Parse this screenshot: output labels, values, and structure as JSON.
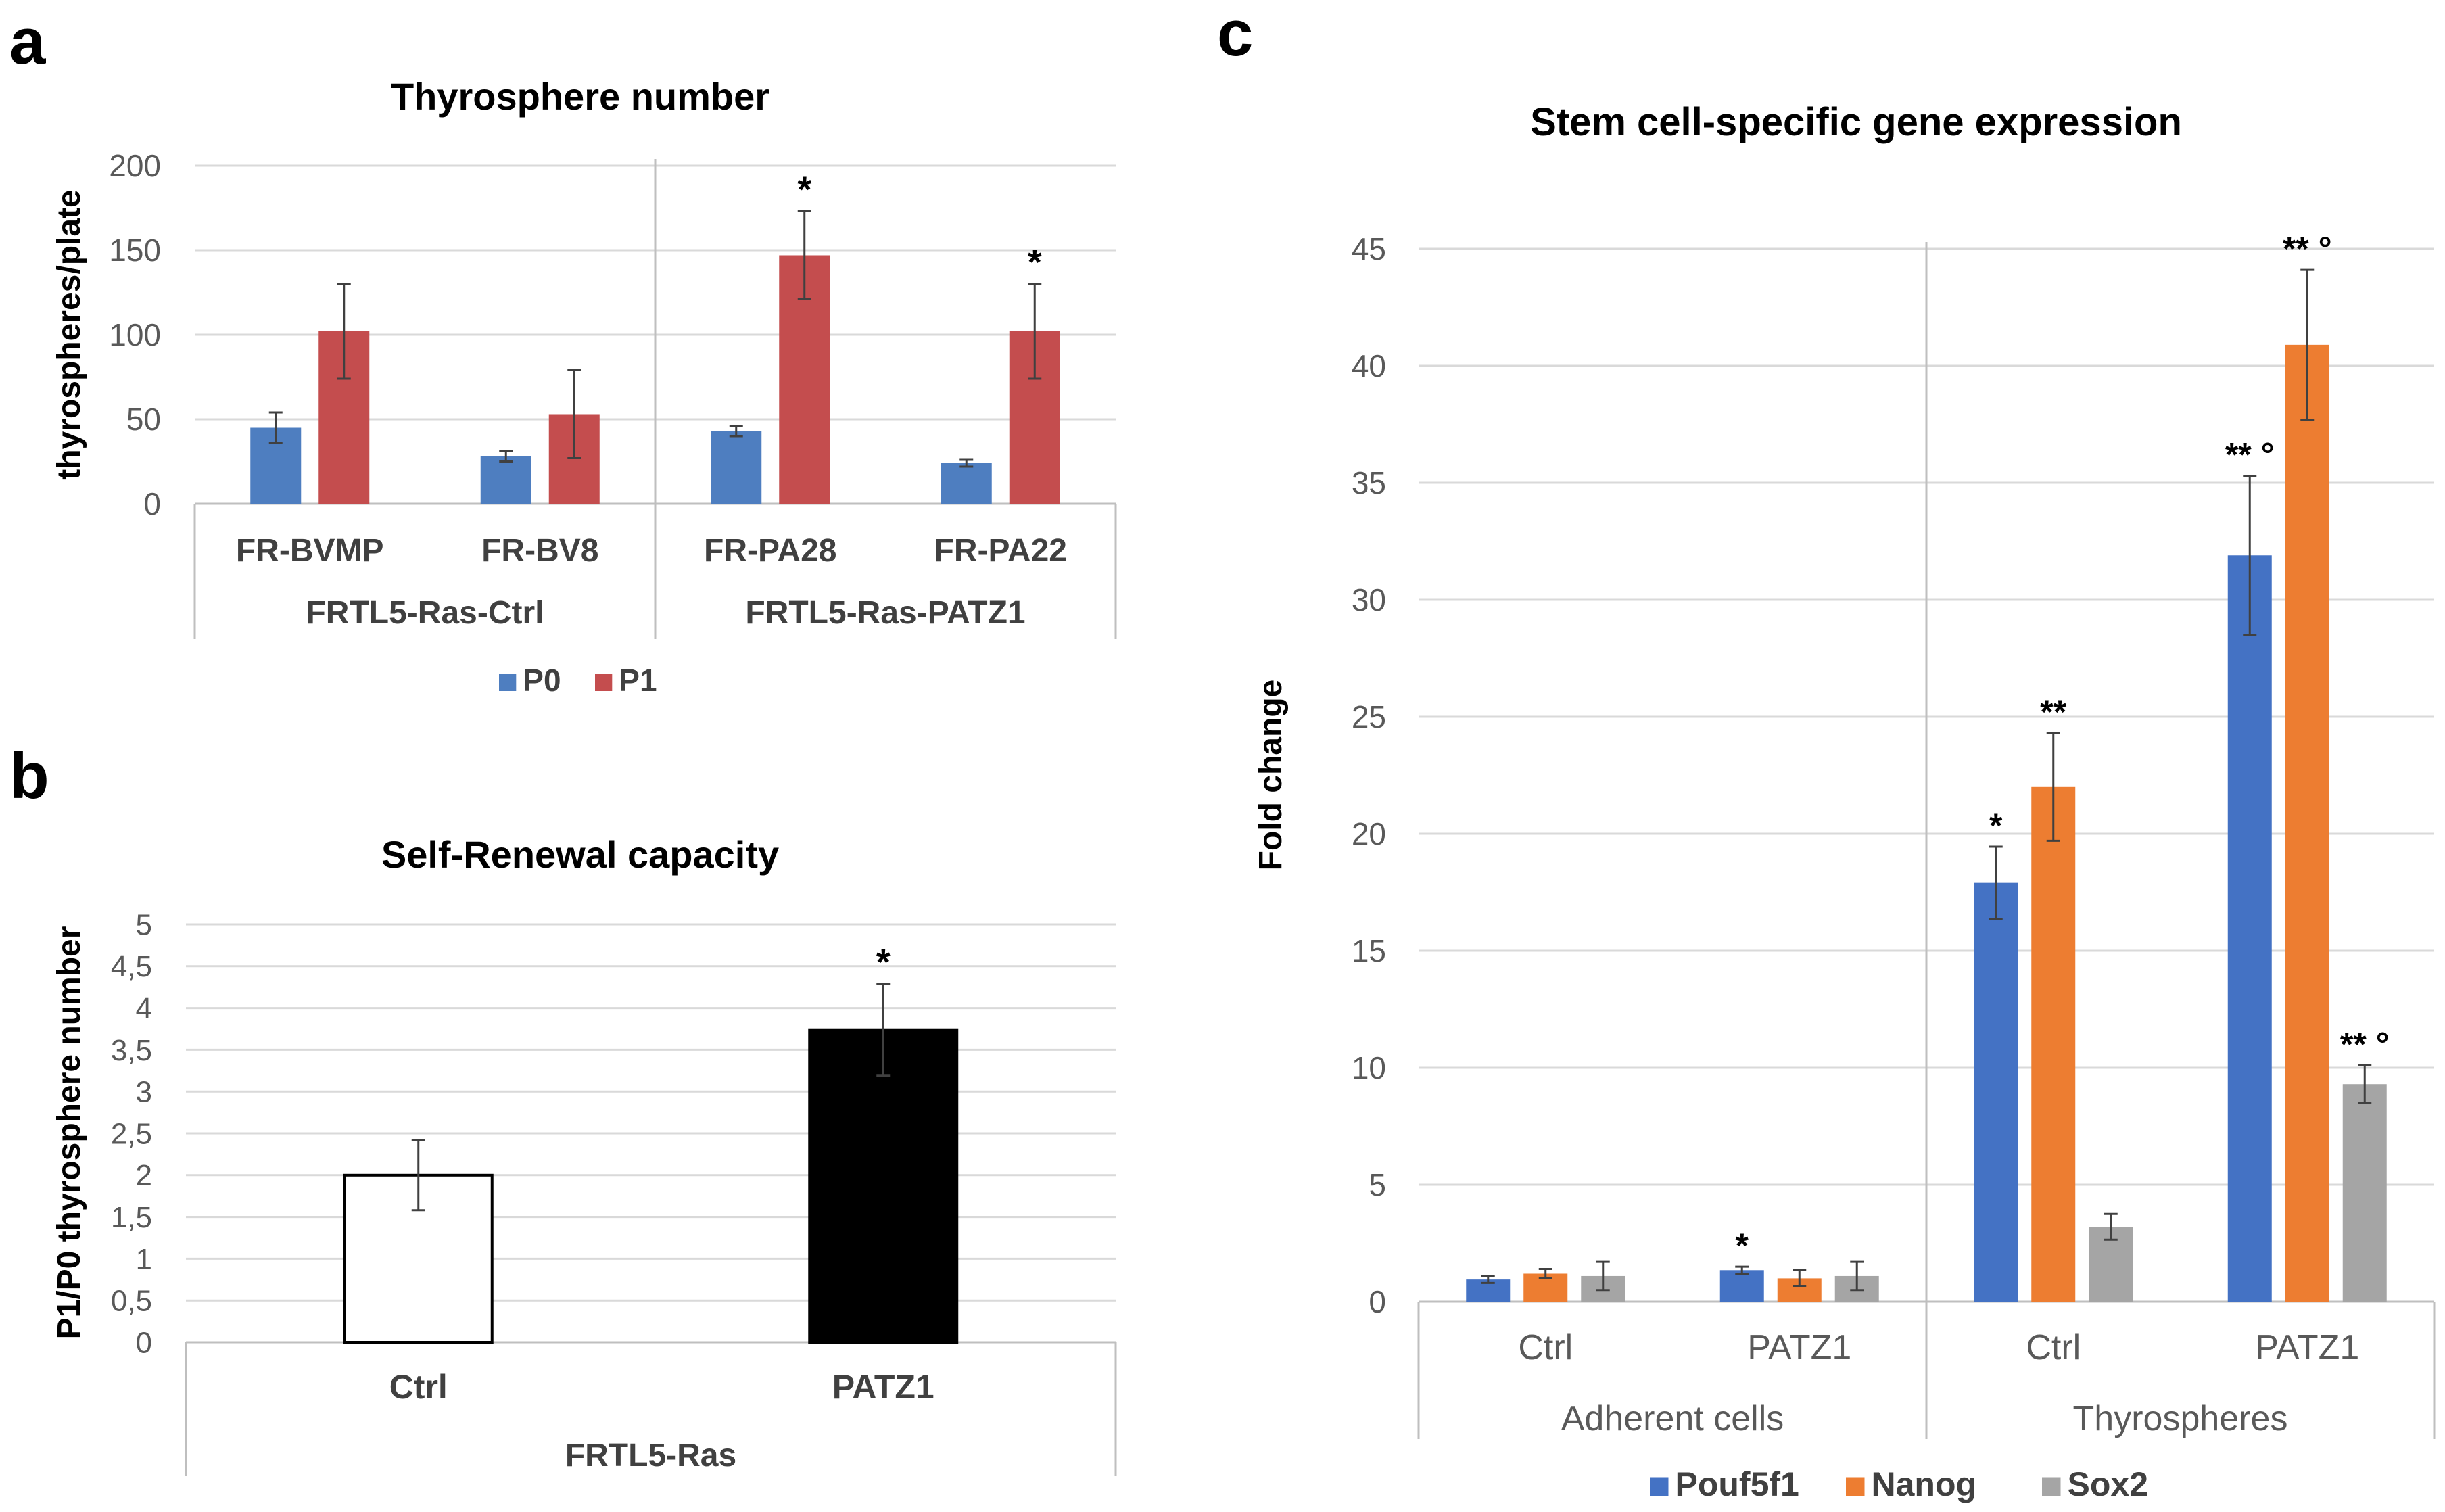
{
  "panel_letters": {
    "a": "a",
    "b": "b",
    "c": "c"
  },
  "colors": {
    "p0": "#4E7EC0",
    "p1": "#C44D4E",
    "pouf5f1": "#4472C4",
    "nanog": "#ED7D31",
    "sox2": "#A5A5A5",
    "ctrl_fill": "#FFFFFF",
    "patz1_fill": "#000000",
    "grid": "#D9D9D9",
    "axis": "#BFBFBF",
    "error": "#404040",
    "text": "#000000",
    "tick": "#595959"
  },
  "chart_data": [
    {
      "id": "a",
      "type": "bar",
      "title": "Thyrosphere number",
      "ylabel": "thyrospheres/plate",
      "xlabel": "",
      "ylim": [
        0,
        200
      ],
      "yticks": [
        "0",
        "50",
        "100",
        "150",
        "200"
      ],
      "grid": true,
      "legend": "bottom",
      "categories": [
        "FR-BVMP",
        "FR-BV8",
        "FR-PA28",
        "FR-PA22"
      ],
      "groups": [
        {
          "label": "FRTL5-Ras-Ctrl",
          "count": 2
        },
        {
          "label": "FRTL5-Ras-PATZ1",
          "count": 2
        }
      ],
      "series": [
        {
          "name": "P0",
          "color_key": "p0",
          "values": [
            45,
            28,
            43,
            24
          ],
          "errors": [
            9,
            3,
            3,
            2
          ],
          "annotations": [
            "",
            "",
            "",
            ""
          ]
        },
        {
          "name": "P1",
          "color_key": "p1",
          "values": [
            102,
            53,
            147,
            102
          ],
          "errors": [
            28,
            26,
            26,
            28
          ],
          "annotations": [
            "",
            "",
            "*",
            "*"
          ]
        }
      ]
    },
    {
      "id": "b",
      "type": "bar",
      "title": "Self-Renewal capacity",
      "ylabel": "P1/P0 thyrosphere number",
      "xlabel": "",
      "ylim": [
        0,
        5
      ],
      "yticks": [
        "0",
        "0,5",
        "1",
        "1,5",
        "2",
        "2,5",
        "3",
        "3,5",
        "4",
        "4,5",
        "5"
      ],
      "grid": true,
      "legend": "none",
      "categories": [
        "Ctrl",
        "PATZ1"
      ],
      "groups": [
        {
          "label": "FRTL5-Ras",
          "count": 2
        }
      ],
      "series": [
        {
          "name": "",
          "fill_keys": [
            "ctrl_fill",
            "patz1_fill"
          ],
          "values": [
            2.0,
            3.74
          ],
          "errors": [
            0.42,
            0.55
          ],
          "annotations": [
            "",
            "*"
          ]
        }
      ]
    },
    {
      "id": "c",
      "type": "bar",
      "title": "Stem cell-specific gene expression",
      "ylabel": "Fold change",
      "xlabel": "",
      "ylim": [
        0,
        45
      ],
      "yticks": [
        "0",
        "5",
        "10",
        "15",
        "20",
        "25",
        "30",
        "35",
        "40",
        "45"
      ],
      "grid": true,
      "legend": "bottom",
      "categories": [
        "Ctrl",
        "PATZ1",
        "Ctrl",
        "PATZ1"
      ],
      "groups": [
        {
          "label": "Adherent cells",
          "count": 2
        },
        {
          "label": "Thyrospheres",
          "count": 2
        }
      ],
      "series": [
        {
          "name": "Pouf5f1",
          "color_key": "pouf5f1",
          "values": [
            0.95,
            1.35,
            17.9,
            31.9
          ],
          "errors": [
            0.15,
            0.15,
            1.55,
            3.4
          ],
          "annotations": [
            "",
            "*",
            "*",
            "** °"
          ]
        },
        {
          "name": "Nanog",
          "color_key": "nanog",
          "values": [
            1.2,
            1.0,
            22.0,
            40.9
          ],
          "errors": [
            0.2,
            0.35,
            2.3,
            3.2
          ],
          "annotations": [
            "",
            "",
            "**",
            "** °"
          ]
        },
        {
          "name": "Sox2",
          "color_key": "sox2",
          "values": [
            1.1,
            1.1,
            3.2,
            9.3
          ],
          "errors": [
            0.6,
            0.6,
            0.55,
            0.8
          ],
          "annotations": [
            "",
            "",
            "",
            "** °"
          ]
        }
      ]
    }
  ]
}
